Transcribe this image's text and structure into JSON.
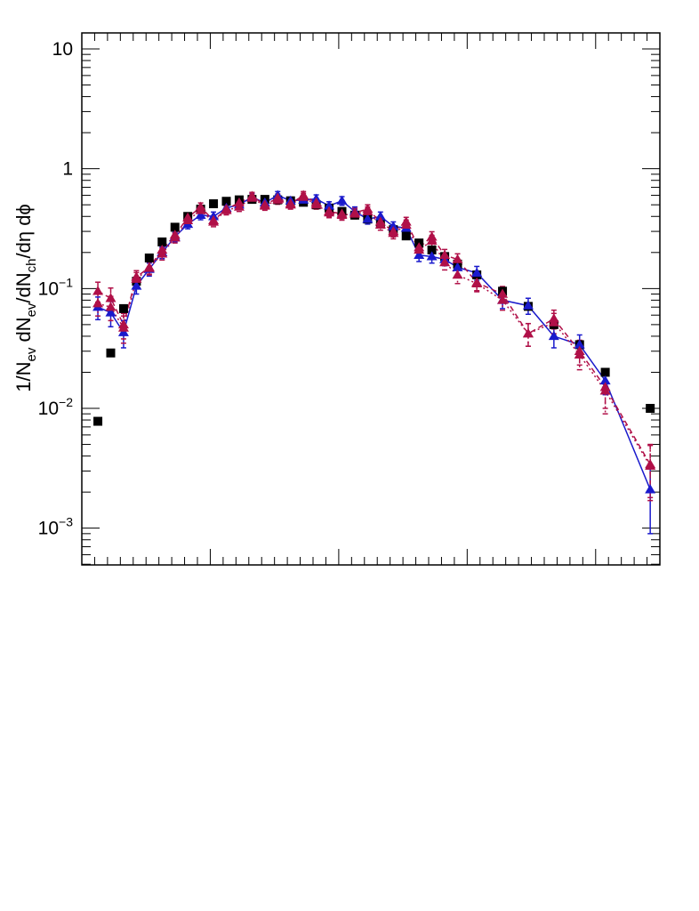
{
  "chart_data": {
    "type": "scatter",
    "title": "",
    "xlabel": "",
    "ylabel": {
      "t1": "1/N",
      "s1": "ev",
      "t2": " dN",
      "s2": "ev",
      "t3": "/dN",
      "s3": "ch",
      "t4": "/dη dϕ"
    },
    "y_scale": "log",
    "ylim": [
      0.0005,
      15
    ],
    "xlim": [
      0,
      45
    ],
    "x_ticks_labelled": false,
    "y_tick_labels": [
      {
        "value": 10,
        "base": "10",
        "exp": ""
      },
      {
        "value": 1,
        "base": "1",
        "exp": ""
      },
      {
        "value": 0.1,
        "base": "10",
        "exp": "−1"
      },
      {
        "value": 0.01,
        "base": "10",
        "exp": "−2"
      },
      {
        "value": 0.001,
        "base": "10",
        "exp": "−3"
      }
    ],
    "legend": "none",
    "grid": false,
    "series": [
      {
        "marker": "square",
        "color": "#000000",
        "line": "none",
        "points": [
          {
            "x": 1.25,
            "y": 0.0078
          },
          {
            "x": 2.25,
            "y": 0.029
          },
          {
            "x": 3.25,
            "y": 0.068
          },
          {
            "x": 4.25,
            "y": 0.115
          },
          {
            "x": 5.25,
            "y": 0.18
          },
          {
            "x": 6.25,
            "y": 0.245
          },
          {
            "x": 7.25,
            "y": 0.325
          },
          {
            "x": 8.25,
            "y": 0.4
          },
          {
            "x": 9.25,
            "y": 0.46
          },
          {
            "x": 10.25,
            "y": 0.51
          },
          {
            "x": 11.25,
            "y": 0.535
          },
          {
            "x": 12.25,
            "y": 0.55
          },
          {
            "x": 13.25,
            "y": 0.555
          },
          {
            "x": 14.25,
            "y": 0.555
          },
          {
            "x": 15.25,
            "y": 0.55
          },
          {
            "x": 16.25,
            "y": 0.54
          },
          {
            "x": 17.25,
            "y": 0.525
          },
          {
            "x": 18.25,
            "y": 0.5
          },
          {
            "x": 19.25,
            "y": 0.47
          },
          {
            "x": 20.25,
            "y": 0.44
          },
          {
            "x": 21.25,
            "y": 0.41
          },
          {
            "x": 22.25,
            "y": 0.38
          },
          {
            "x": 23.25,
            "y": 0.345
          },
          {
            "x": 24.25,
            "y": 0.31
          },
          {
            "x": 25.25,
            "y": 0.275
          },
          {
            "x": 26.25,
            "y": 0.24
          },
          {
            "x": 27.25,
            "y": 0.21
          },
          {
            "x": 28.25,
            "y": 0.185
          },
          {
            "x": 29.25,
            "y": 0.16
          },
          {
            "x": 30.75,
            "y": 0.13
          },
          {
            "x": 32.75,
            "y": 0.095
          },
          {
            "x": 34.75,
            "y": 0.071
          },
          {
            "x": 36.75,
            "y": 0.05
          },
          {
            "x": 38.75,
            "y": 0.034
          },
          {
            "x": 40.75,
            "y": 0.02
          },
          {
            "x": 44.25,
            "y": 0.01
          }
        ]
      },
      {
        "marker": "triangle",
        "color": "#1a1acc",
        "line": "solid",
        "points": [
          {
            "x": 1.25,
            "y": 0.07,
            "err": 0.015
          },
          {
            "x": 2.25,
            "y": 0.063,
            "err": 0.015
          },
          {
            "x": 3.25,
            "y": 0.043,
            "err": 0.011
          },
          {
            "x": 4.25,
            "y": 0.105,
            "err": 0.015
          },
          {
            "x": 5.25,
            "y": 0.145,
            "err": 0.018
          },
          {
            "x": 6.25,
            "y": 0.2,
            "err": 0.022
          },
          {
            "x": 7.25,
            "y": 0.27,
            "err": 0.025
          },
          {
            "x": 8.25,
            "y": 0.345,
            "err": 0.03
          },
          {
            "x": 9.25,
            "y": 0.41,
            "err": 0.035
          },
          {
            "x": 10.25,
            "y": 0.4,
            "err": 0.035
          },
          {
            "x": 11.25,
            "y": 0.47,
            "err": 0.04
          },
          {
            "x": 12.25,
            "y": 0.5,
            "err": 0.04
          },
          {
            "x": 13.25,
            "y": 0.58,
            "err": 0.045
          },
          {
            "x": 14.25,
            "y": 0.52,
            "err": 0.04
          },
          {
            "x": 15.25,
            "y": 0.6,
            "err": 0.045
          },
          {
            "x": 16.25,
            "y": 0.54,
            "err": 0.04
          },
          {
            "x": 17.25,
            "y": 0.55,
            "err": 0.045
          },
          {
            "x": 18.25,
            "y": 0.56,
            "err": 0.045
          },
          {
            "x": 19.25,
            "y": 0.49,
            "err": 0.04
          },
          {
            "x": 20.25,
            "y": 0.54,
            "err": 0.045
          },
          {
            "x": 21.25,
            "y": 0.44,
            "err": 0.04
          },
          {
            "x": 22.25,
            "y": 0.38,
            "err": 0.035
          },
          {
            "x": 23.25,
            "y": 0.4,
            "err": 0.035
          },
          {
            "x": 24.25,
            "y": 0.33,
            "err": 0.03
          },
          {
            "x": 25.25,
            "y": 0.32,
            "err": 0.03
          },
          {
            "x": 26.25,
            "y": 0.19,
            "err": 0.022
          },
          {
            "x": 27.25,
            "y": 0.185,
            "err": 0.022
          },
          {
            "x": 28.25,
            "y": 0.175,
            "err": 0.02
          },
          {
            "x": 29.25,
            "y": 0.15,
            "err": 0.02
          },
          {
            "x": 30.75,
            "y": 0.135,
            "err": 0.018
          },
          {
            "x": 32.75,
            "y": 0.08,
            "err": 0.012
          },
          {
            "x": 34.75,
            "y": 0.072,
            "err": 0.011
          },
          {
            "x": 36.75,
            "y": 0.04,
            "err": 0.008
          },
          {
            "x": 38.75,
            "y": 0.034,
            "err": 0.007
          },
          {
            "x": 40.75,
            "y": 0.017,
            "err": 0.004
          },
          {
            "x": 44.25,
            "y": 0.0021,
            "err": 0.0012
          }
        ]
      },
      {
        "marker": "triangle",
        "color": "#b01048",
        "line": "dashed",
        "points": [
          {
            "x": 1.25,
            "y": 0.095,
            "err": 0.018
          },
          {
            "x": 2.25,
            "y": 0.083,
            "err": 0.018
          },
          {
            "x": 3.25,
            "y": 0.05,
            "err": 0.012
          },
          {
            "x": 4.25,
            "y": 0.125,
            "err": 0.016
          },
          {
            "x": 5.25,
            "y": 0.15,
            "err": 0.018
          },
          {
            "x": 6.25,
            "y": 0.21,
            "err": 0.022
          },
          {
            "x": 7.25,
            "y": 0.28,
            "err": 0.025
          },
          {
            "x": 8.25,
            "y": 0.39,
            "err": 0.032
          },
          {
            "x": 9.25,
            "y": 0.48,
            "err": 0.038
          },
          {
            "x": 10.25,
            "y": 0.37,
            "err": 0.032
          },
          {
            "x": 11.25,
            "y": 0.46,
            "err": 0.038
          },
          {
            "x": 12.25,
            "y": 0.52,
            "err": 0.04
          },
          {
            "x": 13.25,
            "y": 0.59,
            "err": 0.045
          },
          {
            "x": 14.25,
            "y": 0.5,
            "err": 0.04
          },
          {
            "x": 15.25,
            "y": 0.57,
            "err": 0.045
          },
          {
            "x": 16.25,
            "y": 0.51,
            "err": 0.04
          },
          {
            "x": 17.25,
            "y": 0.6,
            "err": 0.045
          },
          {
            "x": 18.25,
            "y": 0.52,
            "err": 0.04
          },
          {
            "x": 19.25,
            "y": 0.44,
            "err": 0.04
          },
          {
            "x": 20.25,
            "y": 0.42,
            "err": 0.038
          },
          {
            "x": 21.25,
            "y": 0.43,
            "err": 0.038
          },
          {
            "x": 22.25,
            "y": 0.46,
            "err": 0.04
          },
          {
            "x": 23.25,
            "y": 0.36,
            "err": 0.033
          },
          {
            "x": 24.25,
            "y": 0.3,
            "err": 0.03
          },
          {
            "x": 25.25,
            "y": 0.36,
            "err": 0.033
          },
          {
            "x": 26.25,
            "y": 0.22,
            "err": 0.025
          },
          {
            "x": 27.25,
            "y": 0.27,
            "err": 0.028
          },
          {
            "x": 28.25,
            "y": 0.19,
            "err": 0.022
          },
          {
            "x": 29.25,
            "y": 0.175,
            "err": 0.02
          },
          {
            "x": 30.75,
            "y": 0.112,
            "err": 0.016
          },
          {
            "x": 32.75,
            "y": 0.09,
            "err": 0.014
          },
          {
            "x": 34.75,
            "y": 0.042,
            "err": 0.009
          },
          {
            "x": 36.75,
            "y": 0.056,
            "err": 0.01
          },
          {
            "x": 38.75,
            "y": 0.03,
            "err": 0.007
          },
          {
            "x": 40.75,
            "y": 0.015,
            "err": 0.005
          },
          {
            "x": 44.25,
            "y": 0.0034,
            "err": 0.0016
          }
        ]
      },
      {
        "marker": "triangle",
        "color": "#b01048",
        "line": "dotted",
        "points": [
          {
            "x": 1.25,
            "y": 0.075,
            "err": 0.016
          },
          {
            "x": 2.25,
            "y": 0.07,
            "err": 0.016
          },
          {
            "x": 3.25,
            "y": 0.047,
            "err": 0.012
          },
          {
            "x": 4.25,
            "y": 0.12,
            "err": 0.016
          },
          {
            "x": 5.25,
            "y": 0.148,
            "err": 0.018
          },
          {
            "x": 6.25,
            "y": 0.195,
            "err": 0.022
          },
          {
            "x": 7.25,
            "y": 0.265,
            "err": 0.025
          },
          {
            "x": 8.25,
            "y": 0.37,
            "err": 0.032
          },
          {
            "x": 9.25,
            "y": 0.45,
            "err": 0.038
          },
          {
            "x": 10.25,
            "y": 0.36,
            "err": 0.032
          },
          {
            "x": 11.25,
            "y": 0.45,
            "err": 0.038
          },
          {
            "x": 12.25,
            "y": 0.48,
            "err": 0.04
          },
          {
            "x": 13.25,
            "y": 0.57,
            "err": 0.045
          },
          {
            "x": 14.25,
            "y": 0.49,
            "err": 0.04
          },
          {
            "x": 15.25,
            "y": 0.55,
            "err": 0.045
          },
          {
            "x": 16.25,
            "y": 0.5,
            "err": 0.04
          },
          {
            "x": 17.25,
            "y": 0.58,
            "err": 0.045
          },
          {
            "x": 18.25,
            "y": 0.5,
            "err": 0.04
          },
          {
            "x": 19.25,
            "y": 0.43,
            "err": 0.04
          },
          {
            "x": 20.25,
            "y": 0.41,
            "err": 0.038
          },
          {
            "x": 21.25,
            "y": 0.42,
            "err": 0.038
          },
          {
            "x": 22.25,
            "y": 0.44,
            "err": 0.04
          },
          {
            "x": 23.25,
            "y": 0.34,
            "err": 0.033
          },
          {
            "x": 24.25,
            "y": 0.29,
            "err": 0.03
          },
          {
            "x": 25.25,
            "y": 0.34,
            "err": 0.033
          },
          {
            "x": 26.25,
            "y": 0.21,
            "err": 0.025
          },
          {
            "x": 27.25,
            "y": 0.25,
            "err": 0.028
          },
          {
            "x": 28.25,
            "y": 0.165,
            "err": 0.022
          },
          {
            "x": 29.25,
            "y": 0.13,
            "err": 0.02
          },
          {
            "x": 30.75,
            "y": 0.11,
            "err": 0.016
          },
          {
            "x": 32.75,
            "y": 0.08,
            "err": 0.014
          },
          {
            "x": 34.75,
            "y": 0.042,
            "err": 0.009
          },
          {
            "x": 36.75,
            "y": 0.052,
            "err": 0.01
          },
          {
            "x": 38.75,
            "y": 0.028,
            "err": 0.007
          },
          {
            "x": 40.75,
            "y": 0.014,
            "err": 0.005
          },
          {
            "x": 44.25,
            "y": 0.0033,
            "err": 0.0016
          }
        ]
      }
    ]
  }
}
